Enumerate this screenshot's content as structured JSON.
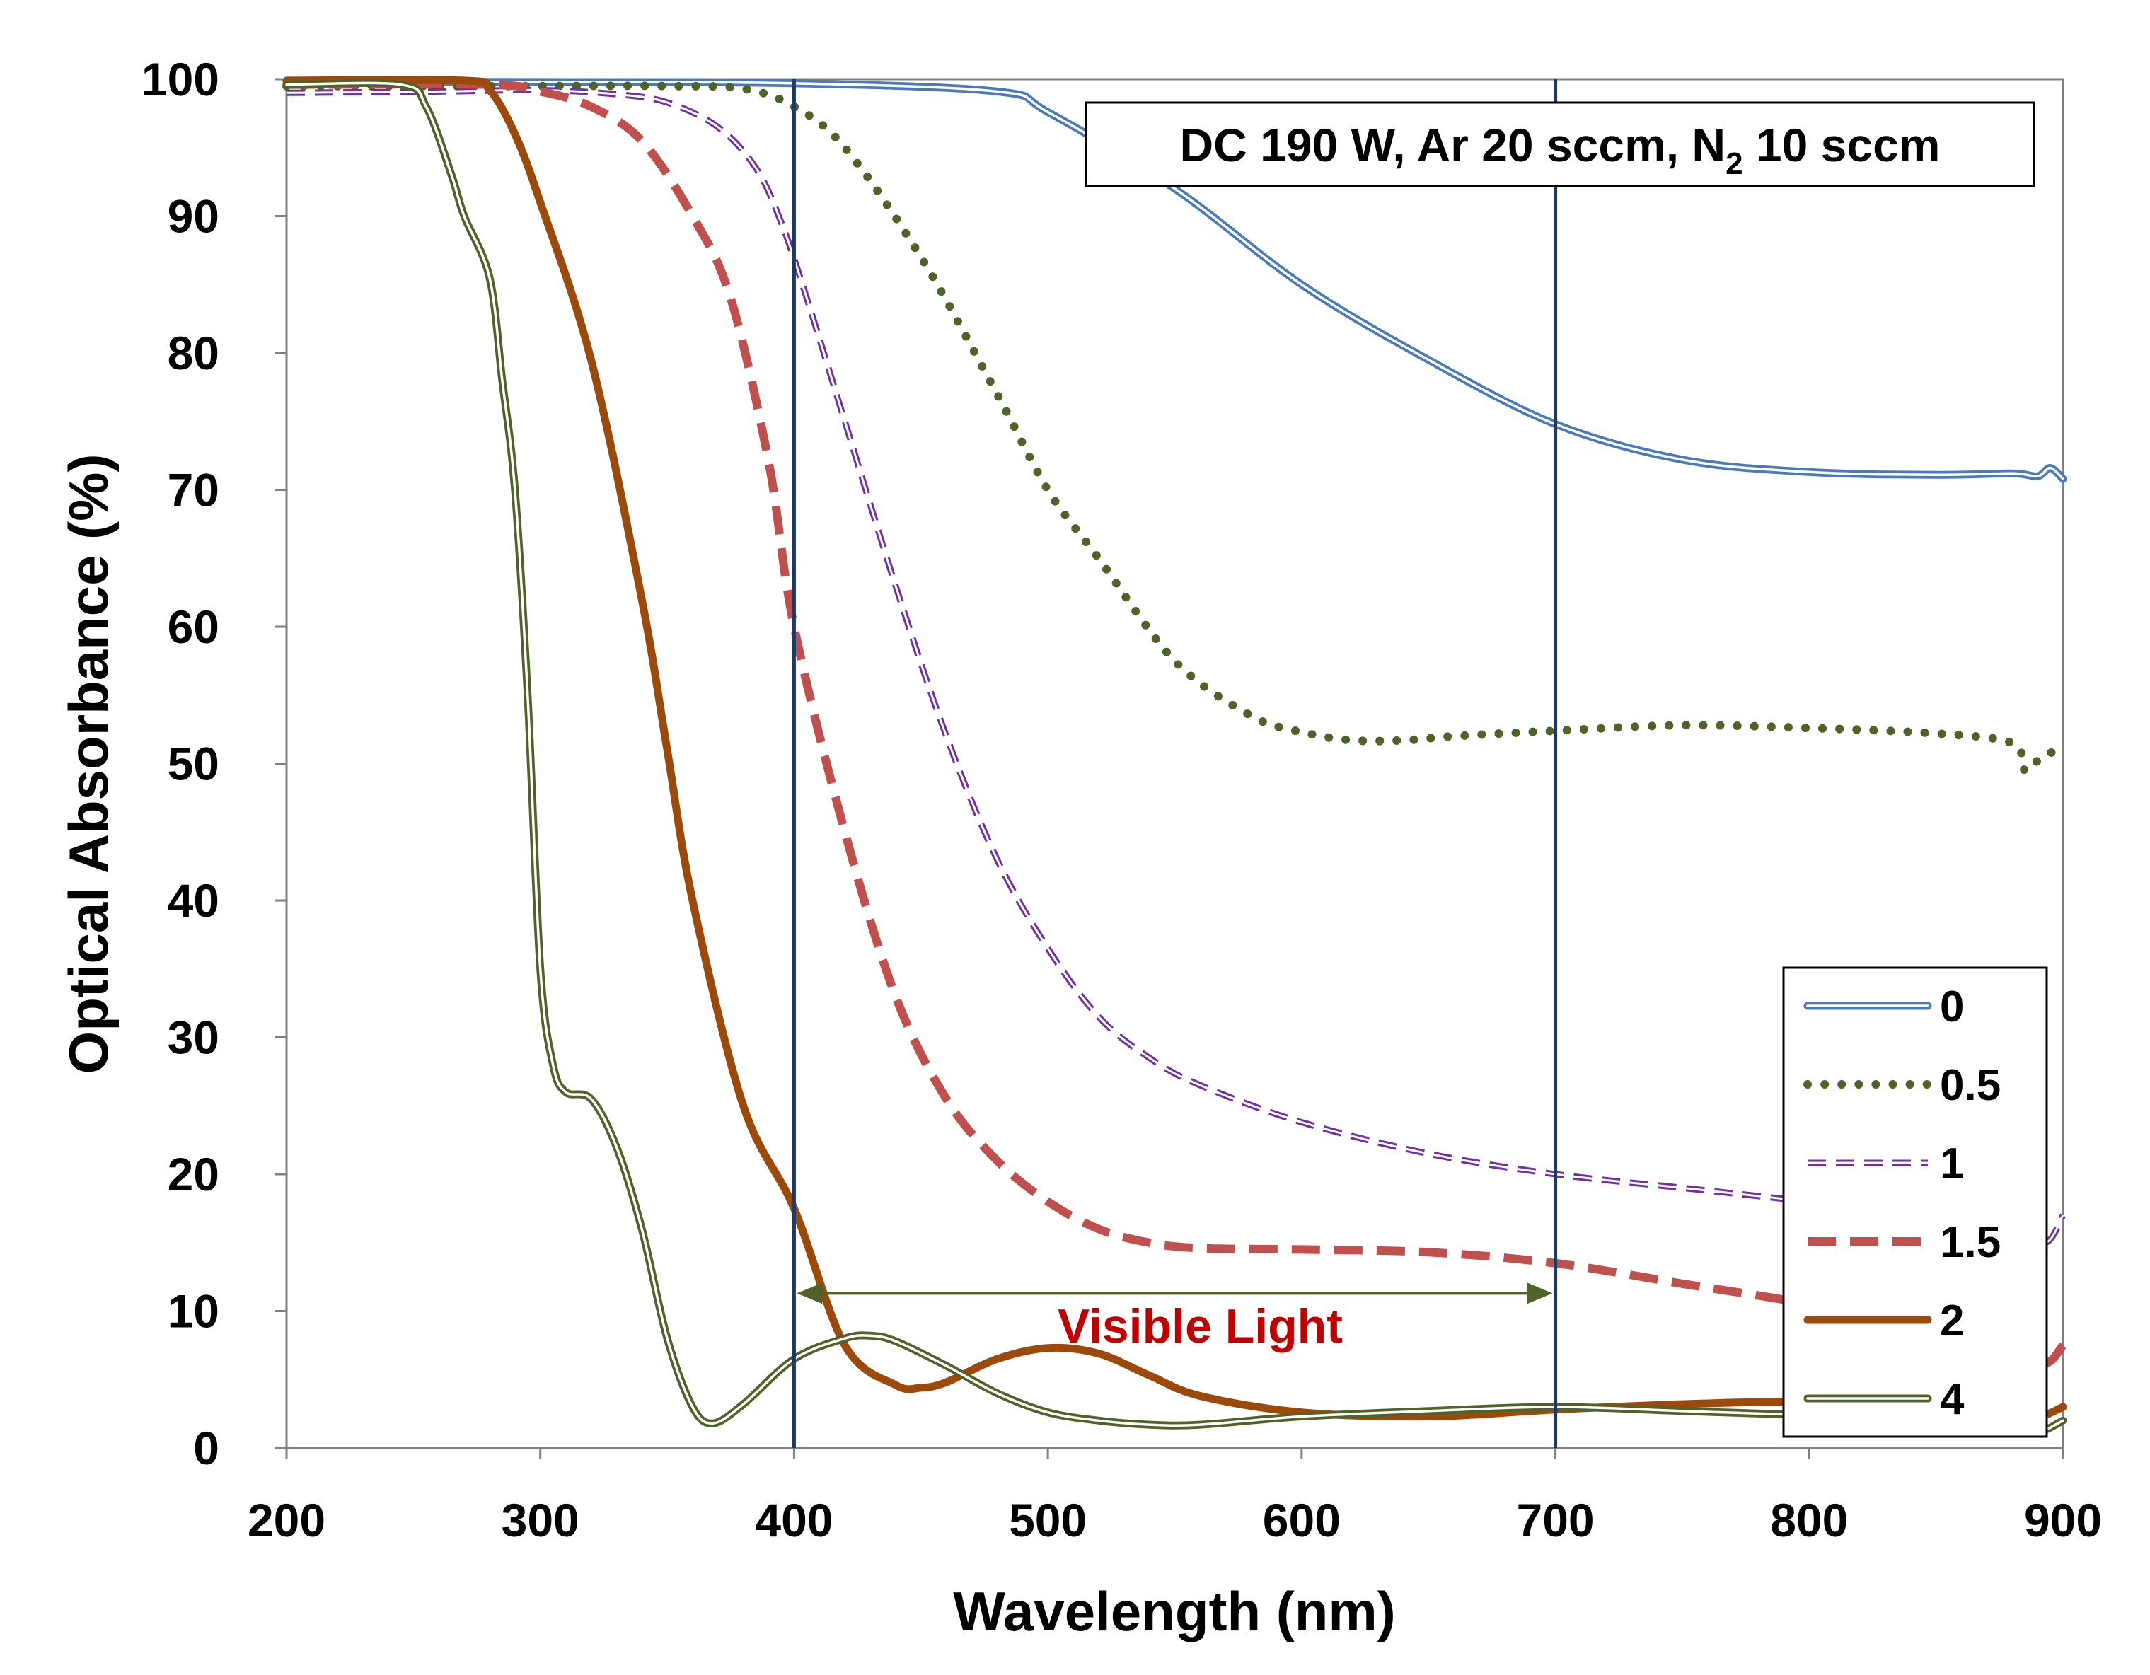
{
  "chart_data": {
    "type": "line",
    "title": "",
    "xlabel": "Wavelength (nm)",
    "ylabel": "Optical Absorbance (%)",
    "xlim": [
      200,
      900
    ],
    "ylim": [
      0,
      100
    ],
    "xticks": [
      "200",
      "300",
      "400",
      "500",
      "600",
      "700",
      "800",
      "900"
    ],
    "yticks": [
      "0",
      "10",
      "20",
      "30",
      "40",
      "50",
      "60",
      "70",
      "80",
      "90",
      "100"
    ],
    "grid": false,
    "legend_position": "bottom-right",
    "annotation": {
      "prefix": "DC 190 W, Ar 20 sccm, N",
      "subscript": "2",
      "suffix": " 10 sccm"
    },
    "visible_light": {
      "label": "Visible Light",
      "x_start": 400,
      "x_end": 700,
      "arrow_y": 11.3,
      "label_x": 560,
      "label_y": 7.7
    },
    "vertical_lines": [
      400,
      700
    ],
    "colors": {
      "axis": "#7f7f7f",
      "vline": "#1f3864",
      "arrow": "#4f6228",
      "visible_text": "#c00000"
    },
    "series": [
      {
        "name": "0",
        "color": "#4a7ab8",
        "style": "double",
        "x": [
          200,
          300,
          400,
          480,
          500,
          550,
          600,
          650,
          700,
          750,
          800,
          850,
          880,
          890,
          895,
          900
        ],
        "y": [
          99.8,
          99.8,
          99.7,
          99.1,
          97.6,
          92,
          85,
          79.5,
          74.8,
          72.2,
          71.3,
          71.1,
          71.2,
          71.0,
          71.6,
          70.8
        ]
      },
      {
        "name": "0.5",
        "color": "#4f6228",
        "style": "dotted",
        "x": [
          200,
          300,
          350,
          380,
          400,
          420,
          450,
          480,
          500,
          520,
          550,
          580,
          600,
          620,
          640,
          660,
          700,
          750,
          800,
          850,
          880,
          885,
          890,
          900
        ],
        "y": [
          99.5,
          99.5,
          99.5,
          99.3,
          98,
          95,
          87,
          77,
          70,
          65,
          57.5,
          53.5,
          52.3,
          51.7,
          51.7,
          52.0,
          52.4,
          52.8,
          52.6,
          52.2,
          51.5,
          49.5,
          50.2,
          51.3
        ]
      },
      {
        "name": "1",
        "color": "#7030a0",
        "style": "double-dashed",
        "x": [
          200,
          260,
          300,
          330,
          350,
          370,
          385,
          395,
          405,
          420,
          440,
          460,
          480,
          500,
          520,
          540,
          560,
          600,
          650,
          700,
          750,
          800,
          850,
          880,
          893,
          900
        ],
        "y": [
          99.0,
          99.1,
          99.2,
          98.9,
          98.3,
          96.5,
          93.5,
          89.5,
          84,
          75,
          63,
          52,
          43,
          36.5,
          31.5,
          28.5,
          26.5,
          23.8,
          21.5,
          20.0,
          19.0,
          18.0,
          17.0,
          16.3,
          15.0,
          17.0
        ]
      },
      {
        "name": "1.5",
        "color": "#c0504d",
        "style": "dashed",
        "x": [
          200,
          280,
          300,
          320,
          340,
          360,
          375,
          390,
          400,
          420,
          440,
          460,
          480,
          500,
          520,
          540,
          560,
          600,
          650,
          700,
          750,
          800,
          850,
          880,
          893,
          900
        ],
        "y": [
          99.6,
          99.6,
          99.1,
          98,
          95.5,
          90,
          84,
          72,
          60,
          45,
          33,
          25.5,
          21,
          18,
          16,
          15,
          14.6,
          14.5,
          14.3,
          13.5,
          12.0,
          10.5,
          8.5,
          7.2,
          6.2,
          7.5
        ]
      },
      {
        "name": "2",
        "color": "#9c4a0c",
        "style": "solid",
        "x": [
          200,
          270,
          280,
          290,
          300,
          320,
          340,
          350,
          360,
          380,
          400,
          420,
          440,
          450,
          460,
          480,
          500,
          520,
          540,
          560,
          600,
          650,
          700,
          750,
          800,
          850,
          880,
          890,
          900
        ],
        "y": [
          99.9,
          99.9,
          99.2,
          96,
          91,
          79.5,
          62,
          51,
          40,
          25,
          17.5,
          7.5,
          4.6,
          4.4,
          4.8,
          6.5,
          7.3,
          6.9,
          5.3,
          3.8,
          2.6,
          2.3,
          2.8,
          3.2,
          3.4,
          3.2,
          3.0,
          2.3,
          3.0
        ]
      },
      {
        "name": "4",
        "color": "#4f6228",
        "style": "double",
        "x": [
          200,
          245,
          255,
          265,
          270,
          280,
          285,
          290,
          295,
          300,
          305,
          310,
          320,
          330,
          340,
          350,
          360,
          368,
          380,
          400,
          420,
          430,
          440,
          460,
          480,
          500,
          520,
          540,
          560,
          600,
          650,
          700,
          750,
          800,
          850,
          880,
          890,
          900
        ],
        "y": [
          99.6,
          99.6,
          98,
          93,
          90,
          85.5,
          78,
          70,
          55,
          35,
          28,
          26,
          25.5,
          22,
          16,
          8,
          3,
          1.8,
          3.2,
          6.5,
          8,
          8.2,
          7.8,
          6,
          4,
          2.6,
          2.0,
          1.7,
          1.7,
          2.3,
          2.7,
          3.0,
          2.7,
          2.4,
          2.2,
          2.0,
          1.2,
          2.0
        ]
      }
    ]
  }
}
